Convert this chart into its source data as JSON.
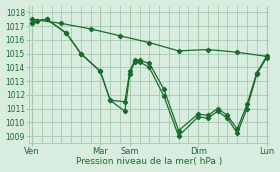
{
  "xlabel": "Pression niveau de la mer( hPa )",
  "ylim": [
    1008.5,
    1018.5
  ],
  "yticks": [
    1009,
    1010,
    1011,
    1012,
    1013,
    1014,
    1015,
    1016,
    1017,
    1018
  ],
  "xtick_labels": [
    "Ven",
    "",
    "Mar",
    "Sam",
    "",
    "Dim",
    "",
    "Lun"
  ],
  "xtick_positions": [
    0,
    3.5,
    7,
    10,
    13.5,
    17,
    20,
    24
  ],
  "background_color": "#d8ede0",
  "grid_color": "#a8c8b0",
  "line_color": "#1a6b2a",
  "marker_color": "#1a6b2a",
  "series1_x": [
    0,
    0.5,
    1.5,
    3.5,
    5,
    7,
    8,
    9.5,
    10,
    10.5,
    11,
    12,
    13.5,
    15,
    17,
    18,
    19,
    20,
    21,
    22,
    23,
    24
  ],
  "series1_y": [
    1017.2,
    1017.4,
    1017.5,
    1016.5,
    1015.0,
    1013.7,
    1011.6,
    1010.8,
    1013.5,
    1014.4,
    1014.4,
    1014.0,
    1011.9,
    1009.0,
    1010.4,
    1010.3,
    1010.8,
    1010.3,
    1009.2,
    1011.0,
    1013.5,
    1014.7
  ],
  "series2_x": [
    0,
    0.5,
    1.5,
    3.5,
    5,
    7,
    8,
    9.5,
    10,
    10.5,
    11,
    12,
    13.5,
    15,
    17,
    18,
    19,
    20,
    21,
    22,
    23,
    24
  ],
  "series2_y": [
    1017.2,
    1017.4,
    1017.5,
    1016.5,
    1015.0,
    1013.7,
    1011.6,
    1011.5,
    1013.7,
    1014.5,
    1014.5,
    1014.3,
    1012.4,
    1009.4,
    1010.6,
    1010.5,
    1011.0,
    1010.5,
    1009.5,
    1011.3,
    1013.6,
    1014.8
  ],
  "series3_x": [
    0,
    3,
    6,
    9,
    12,
    15,
    18,
    21,
    24
  ],
  "series3_y": [
    1017.5,
    1017.2,
    1016.8,
    1016.3,
    1015.8,
    1015.2,
    1015.3,
    1015.1,
    1014.8
  ]
}
